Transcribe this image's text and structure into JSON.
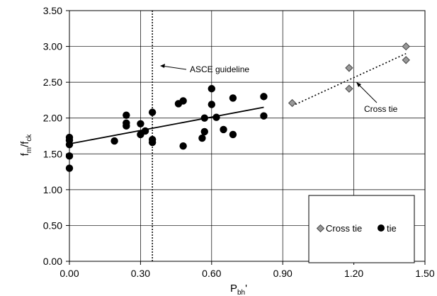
{
  "chart_data": {
    "type": "scatter",
    "xlabel": "P",
    "xlabel_sub": "bh",
    "xlabel_suffix": "'",
    "ylabel": "f",
    "ylabel_sub1": "m",
    "ylabel_mid": "/f",
    "ylabel_sub2": "ck",
    "xlim": [
      0,
      1.5
    ],
    "ylim": [
      0,
      3.5
    ],
    "x_ticks": [
      0,
      0.3,
      0.6,
      0.9,
      1.2,
      1.5
    ],
    "x_tick_labels": [
      "0.00",
      "0.30",
      "0.60",
      "0.90",
      "1.20",
      "1.50"
    ],
    "y_ticks": [
      0,
      0.5,
      1,
      1.5,
      2,
      2.5,
      3,
      3.5
    ],
    "y_tick_labels": [
      "0.00",
      "0.50",
      "1.00",
      "1.50",
      "2.00",
      "2.50",
      "3.00",
      "3.50"
    ],
    "grid": "major gridlines",
    "legend_position": "bottom-right",
    "series": [
      {
        "name": "Cross tie",
        "marker": "diamond",
        "color": "#888888",
        "points": [
          [
            0.94,
            2.21
          ],
          [
            1.18,
            2.7
          ],
          [
            1.18,
            2.41
          ],
          [
            1.42,
            3.0
          ],
          [
            1.42,
            2.81
          ]
        ]
      },
      {
        "name": "tie",
        "marker": "circle",
        "color": "#000000",
        "points": [
          [
            0.0,
            1.73
          ],
          [
            0.0,
            1.69
          ],
          [
            0.0,
            1.63
          ],
          [
            0.0,
            1.47
          ],
          [
            0.0,
            1.3
          ],
          [
            0.19,
            1.68
          ],
          [
            0.24,
            2.04
          ],
          [
            0.24,
            1.93
          ],
          [
            0.24,
            1.89
          ],
          [
            0.3,
            1.92
          ],
          [
            0.3,
            1.77
          ],
          [
            0.32,
            1.82
          ],
          [
            0.35,
            2.08
          ],
          [
            0.35,
            1.7
          ],
          [
            0.35,
            1.66
          ],
          [
            0.46,
            2.2
          ],
          [
            0.48,
            2.24
          ],
          [
            0.48,
            1.61
          ],
          [
            0.56,
            1.72
          ],
          [
            0.57,
            1.81
          ],
          [
            0.57,
            2.0
          ],
          [
            0.6,
            2.41
          ],
          [
            0.6,
            2.19
          ],
          [
            0.62,
            2.01
          ],
          [
            0.65,
            1.84
          ],
          [
            0.69,
            2.28
          ],
          [
            0.69,
            1.77
          ],
          [
            0.82,
            2.3
          ],
          [
            0.82,
            2.03
          ]
        ]
      }
    ],
    "trendlines": [
      {
        "series": "tie",
        "style": "solid",
        "from": [
          0.0,
          1.64
        ],
        "to": [
          0.82,
          2.15
        ]
      },
      {
        "series": "Cross tie",
        "style": "dotted",
        "from": [
          0.94,
          2.17
        ],
        "to": [
          1.42,
          2.9
        ]
      }
    ],
    "reference_line": {
      "x": 0.35,
      "style": "dotted",
      "label": "ASCE guideline"
    },
    "annotations": [
      {
        "text": "ASCE guideline"
      },
      {
        "text": "Cross tie"
      }
    ],
    "legend": [
      {
        "label": "Cross tie",
        "marker": "diamond"
      },
      {
        "label": "tie",
        "marker": "circle"
      }
    ]
  }
}
